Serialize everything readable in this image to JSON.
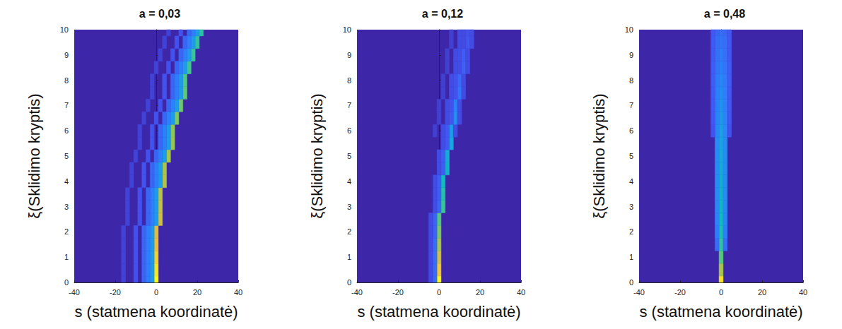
{
  "chart_data": [
    {
      "type": "heatmap",
      "title": "a = 0,03",
      "xlabel": "s (statmena koordinatė)",
      "ylabel": "ξ(Sklidimo kryptis)",
      "xlim": [
        -40,
        40
      ],
      "xticks": [
        -40,
        -20,
        0,
        20,
        40
      ],
      "ylim": [
        0,
        10
      ],
      "yticks": [
        0,
        1,
        2,
        3,
        4,
        5,
        6,
        7,
        8,
        9,
        10
      ],
      "value_range": [
        0,
        1
      ],
      "cells": [
        [
          0,
          0,
          1.0
        ],
        [
          -2,
          0,
          0.35
        ],
        [
          -4,
          0,
          0.25
        ],
        [
          -6,
          0,
          0.18
        ],
        [
          -10,
          0,
          0.12
        ],
        [
          -16,
          0,
          0.08
        ],
        [
          0,
          0.5,
          0.96
        ],
        [
          -2,
          0.5,
          0.35
        ],
        [
          -4,
          0.5,
          0.25
        ],
        [
          -6,
          0.5,
          0.18
        ],
        [
          -10,
          0.5,
          0.12
        ],
        [
          -16,
          0.5,
          0.08
        ],
        [
          0,
          1,
          0.92
        ],
        [
          -2,
          1,
          0.35
        ],
        [
          -4,
          1,
          0.25
        ],
        [
          -6,
          1,
          0.18
        ],
        [
          -10,
          1,
          0.12
        ],
        [
          -16,
          1,
          0.08
        ],
        [
          0,
          1.5,
          0.88
        ],
        [
          -2,
          1.5,
          0.35
        ],
        [
          -4,
          1.5,
          0.25
        ],
        [
          -6,
          1.5,
          0.18
        ],
        [
          -10,
          1.5,
          0.12
        ],
        [
          -16,
          1.5,
          0.08
        ],
        [
          0,
          2,
          0.85
        ],
        [
          -2,
          2,
          0.35
        ],
        [
          -4,
          2,
          0.25
        ],
        [
          -6,
          2,
          0.18
        ],
        [
          -10,
          2,
          0.12
        ],
        [
          -16,
          2,
          0.08
        ],
        [
          2,
          2.5,
          0.82
        ],
        [
          0,
          2.5,
          0.35
        ],
        [
          -2,
          2.5,
          0.25
        ],
        [
          -4,
          2.5,
          0.18
        ],
        [
          -8,
          2.5,
          0.12
        ],
        [
          -14,
          2.5,
          0.08
        ],
        [
          2,
          3,
          0.8
        ],
        [
          0,
          3,
          0.35
        ],
        [
          -2,
          3,
          0.25
        ],
        [
          -4,
          3,
          0.18
        ],
        [
          -8,
          3,
          0.12
        ],
        [
          -14,
          3,
          0.08
        ],
        [
          2,
          3.5,
          0.78
        ],
        [
          0,
          3.5,
          0.35
        ],
        [
          -2,
          3.5,
          0.25
        ],
        [
          -4,
          3.5,
          0.18
        ],
        [
          -8,
          3.5,
          0.12
        ],
        [
          -14,
          3.5,
          0.08
        ],
        [
          4,
          4,
          0.77
        ],
        [
          2,
          4,
          0.35
        ],
        [
          0,
          4,
          0.25
        ],
        [
          -2,
          4,
          0.18
        ],
        [
          -6,
          4,
          0.12
        ],
        [
          -12,
          4,
          0.08
        ],
        [
          4,
          4.5,
          0.76
        ],
        [
          2,
          4.5,
          0.35
        ],
        [
          0,
          4.5,
          0.25
        ],
        [
          -2,
          4.5,
          0.18
        ],
        [
          -6,
          4.5,
          0.12
        ],
        [
          -12,
          4.5,
          0.08
        ],
        [
          6,
          5,
          0.75
        ],
        [
          4,
          5,
          0.35
        ],
        [
          2,
          5,
          0.25
        ],
        [
          0,
          5,
          0.18
        ],
        [
          -4,
          5,
          0.12
        ],
        [
          -10,
          5,
          0.08
        ],
        [
          8,
          5.5,
          0.73
        ],
        [
          6,
          5.5,
          0.35
        ],
        [
          4,
          5.5,
          0.25
        ],
        [
          2,
          5.5,
          0.18
        ],
        [
          -2,
          5.5,
          0.12
        ],
        [
          -8,
          5.5,
          0.08
        ],
        [
          8,
          6,
          0.72
        ],
        [
          6,
          6,
          0.35
        ],
        [
          4,
          6,
          0.25
        ],
        [
          2,
          6,
          0.18
        ],
        [
          -2,
          6,
          0.12
        ],
        [
          -8,
          6,
          0.08
        ],
        [
          10,
          6.5,
          0.7
        ],
        [
          8,
          6.5,
          0.35
        ],
        [
          6,
          6.5,
          0.25
        ],
        [
          4,
          6.5,
          0.18
        ],
        [
          0,
          6.5,
          0.12
        ],
        [
          -6,
          6.5,
          0.08
        ],
        [
          12,
          7,
          0.68
        ],
        [
          10,
          7,
          0.35
        ],
        [
          8,
          7,
          0.25
        ],
        [
          6,
          7,
          0.18
        ],
        [
          2,
          7,
          0.12
        ],
        [
          -4,
          7,
          0.08
        ],
        [
          14,
          7.5,
          0.66
        ],
        [
          12,
          7.5,
          0.35
        ],
        [
          10,
          7.5,
          0.25
        ],
        [
          8,
          7.5,
          0.18
        ],
        [
          4,
          7.5,
          0.12
        ],
        [
          -2,
          7.5,
          0.08
        ],
        [
          14,
          8,
          0.64
        ],
        [
          12,
          8,
          0.35
        ],
        [
          10,
          8,
          0.25
        ],
        [
          8,
          8,
          0.18
        ],
        [
          4,
          8,
          0.12
        ],
        [
          -2,
          8,
          0.08
        ],
        [
          16,
          8.5,
          0.62
        ],
        [
          14,
          8.5,
          0.35
        ],
        [
          12,
          8.5,
          0.25
        ],
        [
          10,
          8.5,
          0.18
        ],
        [
          6,
          8.5,
          0.12
        ],
        [
          0,
          8.5,
          0.08
        ],
        [
          18,
          9,
          0.6
        ],
        [
          16,
          9,
          0.35
        ],
        [
          14,
          9,
          0.25
        ],
        [
          12,
          9,
          0.18
        ],
        [
          8,
          9,
          0.12
        ],
        [
          2,
          9,
          0.08
        ],
        [
          20,
          9.5,
          0.58
        ],
        [
          18,
          9.5,
          0.35
        ],
        [
          16,
          9.5,
          0.25
        ],
        [
          14,
          9.5,
          0.18
        ],
        [
          10,
          9.5,
          0.12
        ],
        [
          4,
          9.5,
          0.08
        ],
        [
          22,
          10,
          0.56
        ],
        [
          20,
          10,
          0.35
        ],
        [
          18,
          10,
          0.25
        ],
        [
          16,
          10,
          0.18
        ],
        [
          12,
          10,
          0.12
        ],
        [
          6,
          10,
          0.08
        ]
      ]
    },
    {
      "type": "heatmap",
      "title": "a = 0,12",
      "xlabel": "s (statmena koordinatė)",
      "ylabel": "ξ(Sklidimo kryptis)",
      "xlim": [
        -40,
        40
      ],
      "xticks": [
        -40,
        -20,
        0,
        20,
        40
      ],
      "ylim": [
        0,
        10
      ],
      "yticks": [
        0,
        1,
        2,
        3,
        4,
        5,
        6,
        7,
        8,
        9,
        10
      ],
      "value_range": [
        0,
        1
      ],
      "cells": [
        [
          0,
          0,
          1.0
        ],
        [
          -2,
          0,
          0.2
        ],
        [
          -4,
          0,
          0.1
        ],
        [
          0,
          0.5,
          0.9
        ],
        [
          -2,
          0.5,
          0.2
        ],
        [
          -4,
          0.5,
          0.1
        ],
        [
          0,
          1,
          0.82
        ],
        [
          -2,
          1,
          0.2
        ],
        [
          -4,
          1,
          0.1
        ],
        [
          0,
          1.5,
          0.75
        ],
        [
          -2,
          1.5,
          0.2
        ],
        [
          -4,
          1.5,
          0.1
        ],
        [
          0,
          2,
          0.7
        ],
        [
          -2,
          2,
          0.18
        ],
        [
          -4,
          2,
          0.1
        ],
        [
          0,
          2.5,
          0.65
        ],
        [
          -2,
          2.5,
          0.18
        ],
        [
          -4,
          2.5,
          0.1
        ],
        [
          2,
          3,
          0.6
        ],
        [
          0,
          3,
          0.18
        ],
        [
          -2,
          3,
          0.1
        ],
        [
          2,
          3.5,
          0.55
        ],
        [
          0,
          3.5,
          0.16
        ],
        [
          -2,
          3.5,
          0.1
        ],
        [
          2,
          4,
          0.5
        ],
        [
          0,
          4,
          0.16
        ],
        [
          -2,
          4,
          0.1
        ],
        [
          4,
          4.5,
          0.46
        ],
        [
          2,
          4.5,
          0.15
        ],
        [
          0,
          4.5,
          0.1
        ],
        [
          4,
          5,
          0.42
        ],
        [
          2,
          5,
          0.15
        ],
        [
          0,
          5,
          0.1
        ],
        [
          6,
          5.5,
          0.38
        ],
        [
          4,
          5.5,
          0.14
        ],
        [
          2,
          5.5,
          0.1
        ],
        [
          6,
          6,
          0.34
        ],
        [
          4,
          6,
          0.14
        ],
        [
          2,
          6,
          0.1
        ],
        [
          8,
          6,
          0.1
        ],
        [
          -2,
          6,
          0.07
        ],
        [
          8,
          6.5,
          0.3
        ],
        [
          6,
          6.5,
          0.13
        ],
        [
          4,
          6.5,
          0.1
        ],
        [
          10,
          6.5,
          0.1
        ],
        [
          0,
          6.5,
          0.07
        ],
        [
          8,
          7,
          0.26
        ],
        [
          6,
          7,
          0.12
        ],
        [
          4,
          7,
          0.1
        ],
        [
          10,
          7,
          0.1
        ],
        [
          0,
          7,
          0.07
        ],
        [
          10,
          7.5,
          0.22
        ],
        [
          8,
          7.5,
          0.12
        ],
        [
          6,
          7.5,
          0.1
        ],
        [
          12,
          7.5,
          0.1
        ],
        [
          2,
          7.5,
          0.07
        ],
        [
          10,
          8,
          0.19
        ],
        [
          8,
          8,
          0.12
        ],
        [
          6,
          8,
          0.1
        ],
        [
          12,
          8,
          0.1
        ],
        [
          2,
          8,
          0.07
        ],
        [
          12,
          8.5,
          0.17
        ],
        [
          10,
          8.5,
          0.11
        ],
        [
          8,
          8.5,
          0.1
        ],
        [
          14,
          8.5,
          0.1
        ],
        [
          4,
          8.5,
          0.07
        ],
        [
          12,
          9,
          0.15
        ],
        [
          10,
          9,
          0.11
        ],
        [
          8,
          9,
          0.1
        ],
        [
          14,
          9,
          0.1
        ],
        [
          4,
          9,
          0.07
        ],
        [
          14,
          9.5,
          0.13
        ],
        [
          12,
          9.5,
          0.1
        ],
        [
          10,
          9.5,
          0.1
        ],
        [
          16,
          9.5,
          0.1
        ],
        [
          6,
          9.5,
          0.07
        ],
        [
          14,
          10,
          0.12
        ],
        [
          12,
          10,
          0.1
        ],
        [
          10,
          10,
          0.1
        ],
        [
          16,
          10,
          0.1
        ],
        [
          6,
          10,
          0.07
        ]
      ]
    },
    {
      "type": "heatmap",
      "title": "a = 0,48",
      "xlabel": "s (statmena koordinatė)",
      "ylabel": "ξ(Sklidimo kryptis)",
      "xlim": [
        -40,
        40
      ],
      "xticks": [
        -40,
        -20,
        0,
        20,
        40
      ],
      "ylim": [
        0,
        10
      ],
      "yticks": [
        0,
        1,
        2,
        3,
        4,
        5,
        6,
        7,
        8,
        9,
        10
      ],
      "value_range": [
        0,
        1
      ],
      "cells": [
        [
          0,
          0,
          0.95
        ],
        [
          0,
          0.5,
          0.75
        ],
        [
          0,
          1,
          0.65
        ],
        [
          0,
          1.5,
          0.58
        ],
        [
          -2,
          1.5,
          0.2
        ],
        [
          2,
          1.5,
          0.2
        ],
        [
          0,
          2,
          0.53
        ],
        [
          -2,
          2,
          0.25
        ],
        [
          2,
          2,
          0.25
        ],
        [
          0,
          2.5,
          0.5
        ],
        [
          -2,
          2.5,
          0.27
        ],
        [
          2,
          2.5,
          0.27
        ],
        [
          0,
          3,
          0.47
        ],
        [
          -2,
          3,
          0.28
        ],
        [
          2,
          3,
          0.28
        ],
        [
          0,
          3.5,
          0.45
        ],
        [
          -2,
          3.5,
          0.29
        ],
        [
          2,
          3.5,
          0.29
        ],
        [
          0,
          4,
          0.43
        ],
        [
          -2,
          4,
          0.3
        ],
        [
          2,
          4,
          0.3
        ],
        [
          0,
          4.5,
          0.41
        ],
        [
          -2,
          4.5,
          0.3
        ],
        [
          2,
          4.5,
          0.3
        ],
        [
          0,
          5,
          0.4
        ],
        [
          -2,
          5,
          0.3
        ],
        [
          2,
          5,
          0.3
        ],
        [
          0,
          5.5,
          0.38
        ],
        [
          -2,
          5.5,
          0.29
        ],
        [
          2,
          5.5,
          0.29
        ],
        [
          0,
          6,
          0.36
        ],
        [
          -2,
          6,
          0.28
        ],
        [
          2,
          6,
          0.28
        ],
        [
          -4,
          6,
          0.12
        ],
        [
          4,
          6,
          0.12
        ],
        [
          0,
          6.5,
          0.34
        ],
        [
          -2,
          6.5,
          0.27
        ],
        [
          2,
          6.5,
          0.27
        ],
        [
          -4,
          6.5,
          0.13
        ],
        [
          4,
          6.5,
          0.13
        ],
        [
          0,
          7,
          0.32
        ],
        [
          -2,
          7,
          0.26
        ],
        [
          2,
          7,
          0.26
        ],
        [
          -4,
          7,
          0.14
        ],
        [
          4,
          7,
          0.14
        ],
        [
          0,
          7.5,
          0.3
        ],
        [
          -2,
          7.5,
          0.25
        ],
        [
          2,
          7.5,
          0.25
        ],
        [
          -4,
          7.5,
          0.14
        ],
        [
          4,
          7.5,
          0.14
        ],
        [
          0,
          8,
          0.28
        ],
        [
          -2,
          8,
          0.24
        ],
        [
          2,
          8,
          0.24
        ],
        [
          -4,
          8,
          0.15
        ],
        [
          4,
          8,
          0.15
        ],
        [
          0,
          8.5,
          0.26
        ],
        [
          -2,
          8.5,
          0.22
        ],
        [
          2,
          8.5,
          0.22
        ],
        [
          -4,
          8.5,
          0.15
        ],
        [
          4,
          8.5,
          0.15
        ],
        [
          0,
          9,
          0.24
        ],
        [
          -2,
          9,
          0.21
        ],
        [
          2,
          9,
          0.21
        ],
        [
          -4,
          9,
          0.14
        ],
        [
          4,
          9,
          0.14
        ],
        [
          0,
          9.5,
          0.22
        ],
        [
          -2,
          9.5,
          0.2
        ],
        [
          2,
          9.5,
          0.2
        ],
        [
          -4,
          9.5,
          0.14
        ],
        [
          4,
          9.5,
          0.14
        ],
        [
          0,
          10,
          0.2
        ],
        [
          -2,
          10,
          0.18
        ],
        [
          2,
          10,
          0.18
        ],
        [
          -4,
          10,
          0.13
        ],
        [
          4,
          10,
          0.13
        ]
      ]
    }
  ]
}
